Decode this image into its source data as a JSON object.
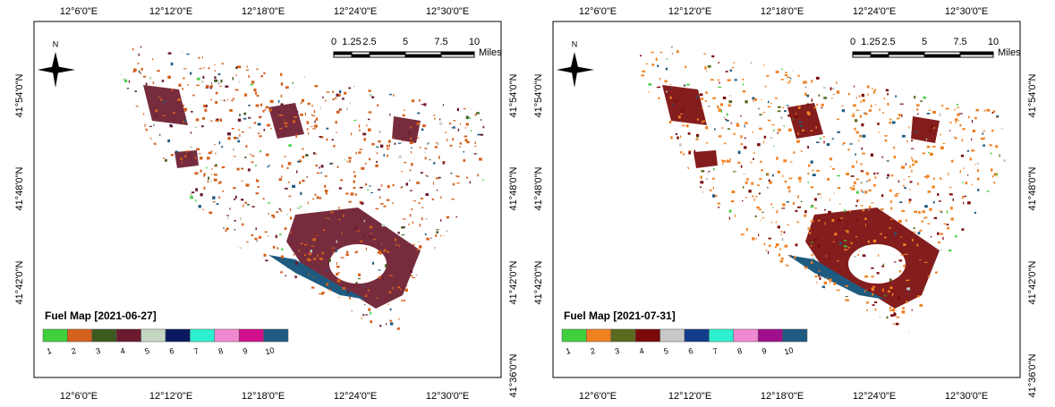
{
  "panels": [
    {
      "title": "Fuel Map [2021-06-27]",
      "legend": {
        "classes": [
          "1",
          "2",
          "3",
          "4",
          "5",
          "6",
          "7",
          "8",
          "9",
          "10"
        ],
        "colors": [
          "#3fcf3f",
          "#d4601c",
          "#3d5a1f",
          "#6b1a2e",
          "#c5d6c3",
          "#0a1a60",
          "#2ef0d0",
          "#f08ad0",
          "#d0108c",
          "#1f5a80"
        ]
      }
    },
    {
      "title": "Fuel Map [2021-07-31]",
      "legend": {
        "classes": [
          "1",
          "2",
          "3",
          "4",
          "5",
          "6",
          "7",
          "8",
          "9",
          "10"
        ],
        "colors": [
          "#3fcf3f",
          "#f08020",
          "#5a6a1f",
          "#7a0a0a",
          "#c8c8c8",
          "#123b8c",
          "#2ef0d0",
          "#f08ad0",
          "#a0108c",
          "#1f5a80"
        ]
      }
    }
  ],
  "graticule": {
    "lon_labels": [
      "12°6'0\"E",
      "12°12'0\"E",
      "12°18'0\"E",
      "12°24'0\"E",
      "12°30'0\"E"
    ],
    "lat_labels": [
      "41°54'0\"N",
      "41°48'0\"N",
      "41°42'0\"N",
      "41°36'0\"N"
    ]
  },
  "scale_bar": {
    "labels": [
      "0",
      "1.25",
      "2.5",
      "5",
      "7.5",
      "10"
    ],
    "unit": "Miles"
  },
  "north": "N"
}
